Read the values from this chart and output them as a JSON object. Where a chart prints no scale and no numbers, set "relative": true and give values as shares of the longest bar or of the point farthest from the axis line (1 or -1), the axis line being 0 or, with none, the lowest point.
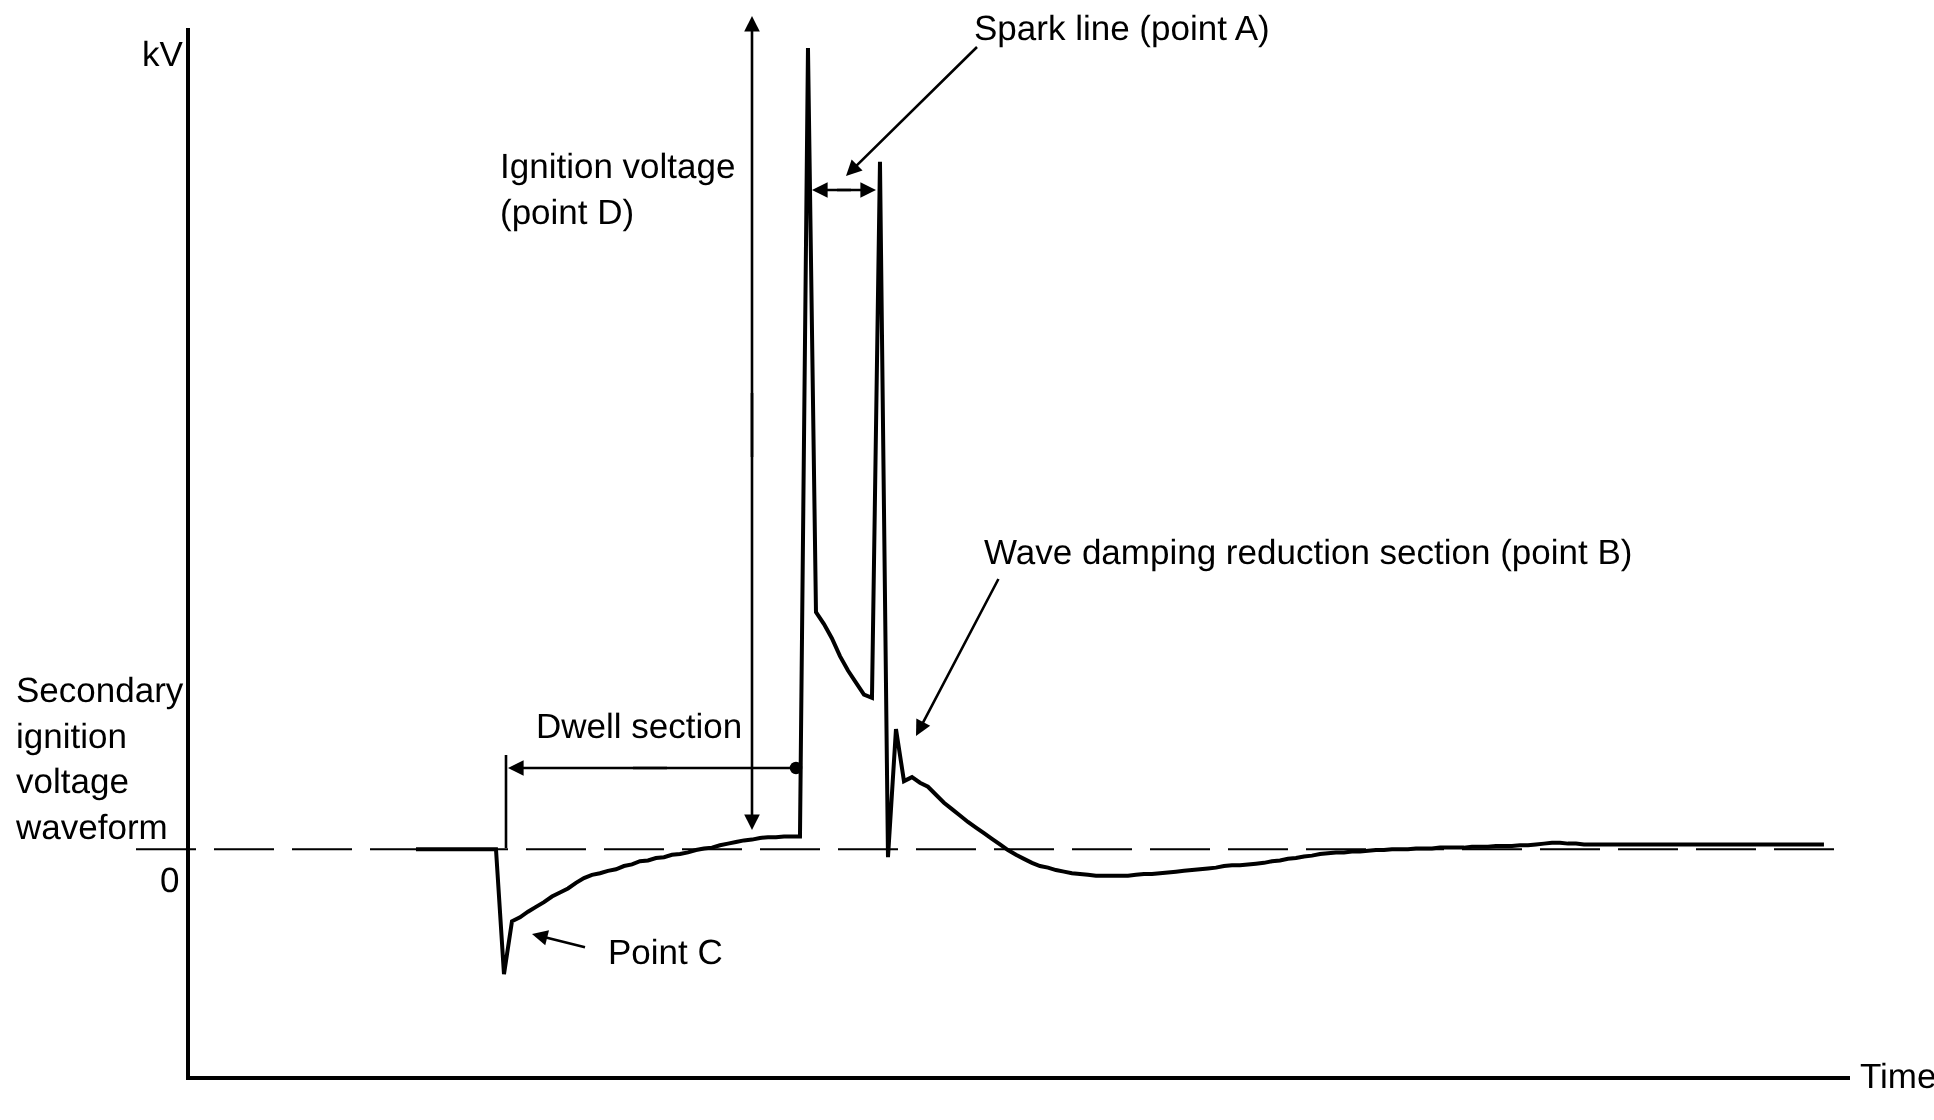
{
  "chart_data": {
    "type": "line",
    "relative": true,
    "xlabel": "Time",
    "categories": [
      null,
      null,
      null,
      null,
      null,
      null,
      null,
      null,
      null,
      null,
      null,
      null,
      null,
      null,
      null,
      null,
      null,
      null,
      null,
      null,
      null,
      null,
      null,
      null,
      null,
      null,
      null,
      null,
      null,
      null,
      null,
      null,
      null,
      null,
      null,
      null,
      null,
      null,
      null,
      null,
      null,
      null,
      null,
      null,
      null,
      null,
      null,
      null,
      null,
      null,
      null,
      null,
      null,
      null,
      null,
      null,
      null,
      null,
      null,
      null,
      null,
      null,
      null,
      null,
      null,
      null,
      null,
      null,
      null,
      null,
      null,
      null,
      null,
      null,
      null,
      null,
      null,
      null,
      null,
      null,
      null,
      null,
      null,
      null,
      null,
      null,
      null,
      null,
      null,
      null,
      null,
      null,
      null,
      null,
      null,
      null,
      null,
      null,
      null,
      null,
      null,
      null,
      null,
      null,
      null,
      null,
      null,
      null,
      null,
      null,
      null,
      null,
      null,
      null,
      null,
      null,
      null,
      null,
      null,
      null,
      null,
      null,
      null,
      null,
      null,
      null,
      null,
      null,
      null,
      null,
      null,
      null,
      null,
      null,
      null,
      null,
      null,
      null,
      null,
      null,
      null,
      null,
      null,
      null,
      null,
      null,
      null,
      null,
      null,
      null,
      null,
      null,
      null,
      null,
      null,
      null,
      null,
      null,
      null,
      null,
      null,
      null,
      null,
      null,
      null,
      null,
      null,
      null,
      null,
      null,
      null,
      null,
      null,
      null,
      null,
      null,
      null
    ],
    "series": [
      {
        "color": "#000000",
        "values": [
          0,
          0,
          0,
          0,
          0,
          0,
          0,
          0,
          0,
          0,
          0,
          -0.156,
          -0.09,
          -0.085,
          -0.078,
          -0.072,
          -0.066,
          -0.059,
          -0.054,
          -0.049,
          -0.042,
          -0.036,
          -0.032,
          -0.03,
          -0.027,
          -0.025,
          -0.021,
          -0.019,
          -0.015,
          -0.014,
          -0.011,
          -0.01,
          -0.007,
          -0.006,
          -0.004,
          -0.001,
          0.001,
          0.002,
          0.005,
          0.007,
          0.009,
          0.011,
          0.012,
          0.014,
          0.015,
          0.015,
          0.016,
          0.016,
          0.016,
          1,
          0.296,
          0.281,
          0.263,
          0.241,
          0.223,
          0.208,
          0.193,
          0.189,
          0.858,
          -0.01,
          0.15,
          0.085,
          0.09,
          0.083,
          0.078,
          0.068,
          0.058,
          0.05,
          0.042,
          0.034,
          0.027,
          0.02,
          0.013,
          0.006,
          -0.001,
          -0.007,
          -0.012,
          -0.017,
          -0.021,
          -0.023,
          -0.026,
          -0.028,
          -0.03,
          -0.031,
          -0.032,
          -0.033,
          -0.033,
          -0.033,
          -0.033,
          -0.033,
          -0.032,
          -0.031,
          -0.031,
          -0.03,
          -0.029,
          -0.028,
          -0.027,
          -0.026,
          -0.025,
          -0.024,
          -0.023,
          -0.021,
          -0.02,
          -0.02,
          -0.019,
          -0.018,
          -0.017,
          -0.015,
          -0.014,
          -0.012,
          -0.011,
          -0.009,
          -0.008,
          -0.006,
          -0.005,
          -0.004,
          -0.004,
          -0.003,
          -0.003,
          -0.002,
          -0.001,
          -0.001,
          0,
          0,
          0,
          0.001,
          0.001,
          0.001,
          0.002,
          0.002,
          0.002,
          0.002,
          0.003,
          0.003,
          0.003,
          0.004,
          0.004,
          0.004,
          0.005,
          0.005,
          0.006,
          0.007,
          0.008,
          0.008,
          0.007,
          0.007,
          0.006,
          0.006,
          0.006,
          0.006,
          0.006,
          0.006,
          0.006,
          0.006,
          0.006,
          0.006,
          0.006,
          0.006,
          0.006,
          0.006,
          0.006,
          0.006,
          0.006,
          0.006,
          0.006,
          0.006,
          0.006,
          0.006,
          0.006,
          0.006,
          0.006,
          0.006,
          0.006,
          0.006,
          0.006,
          0.006,
          0.006
        ]
      }
    ],
    "ref_lines": [
      {
        "axis": "y",
        "value": 0,
        "label": "0",
        "color": "#000000",
        "line_style": "dashed"
      }
    ],
    "annotations": [
      "kV",
      "Spark line (point A)",
      "Ignition voltage\n(point D)",
      "Wave damping reduction section (point B)",
      "Dwell section",
      "Point C",
      "Secondary\nignition\nvoltage\nwaveform"
    ]
  }
}
